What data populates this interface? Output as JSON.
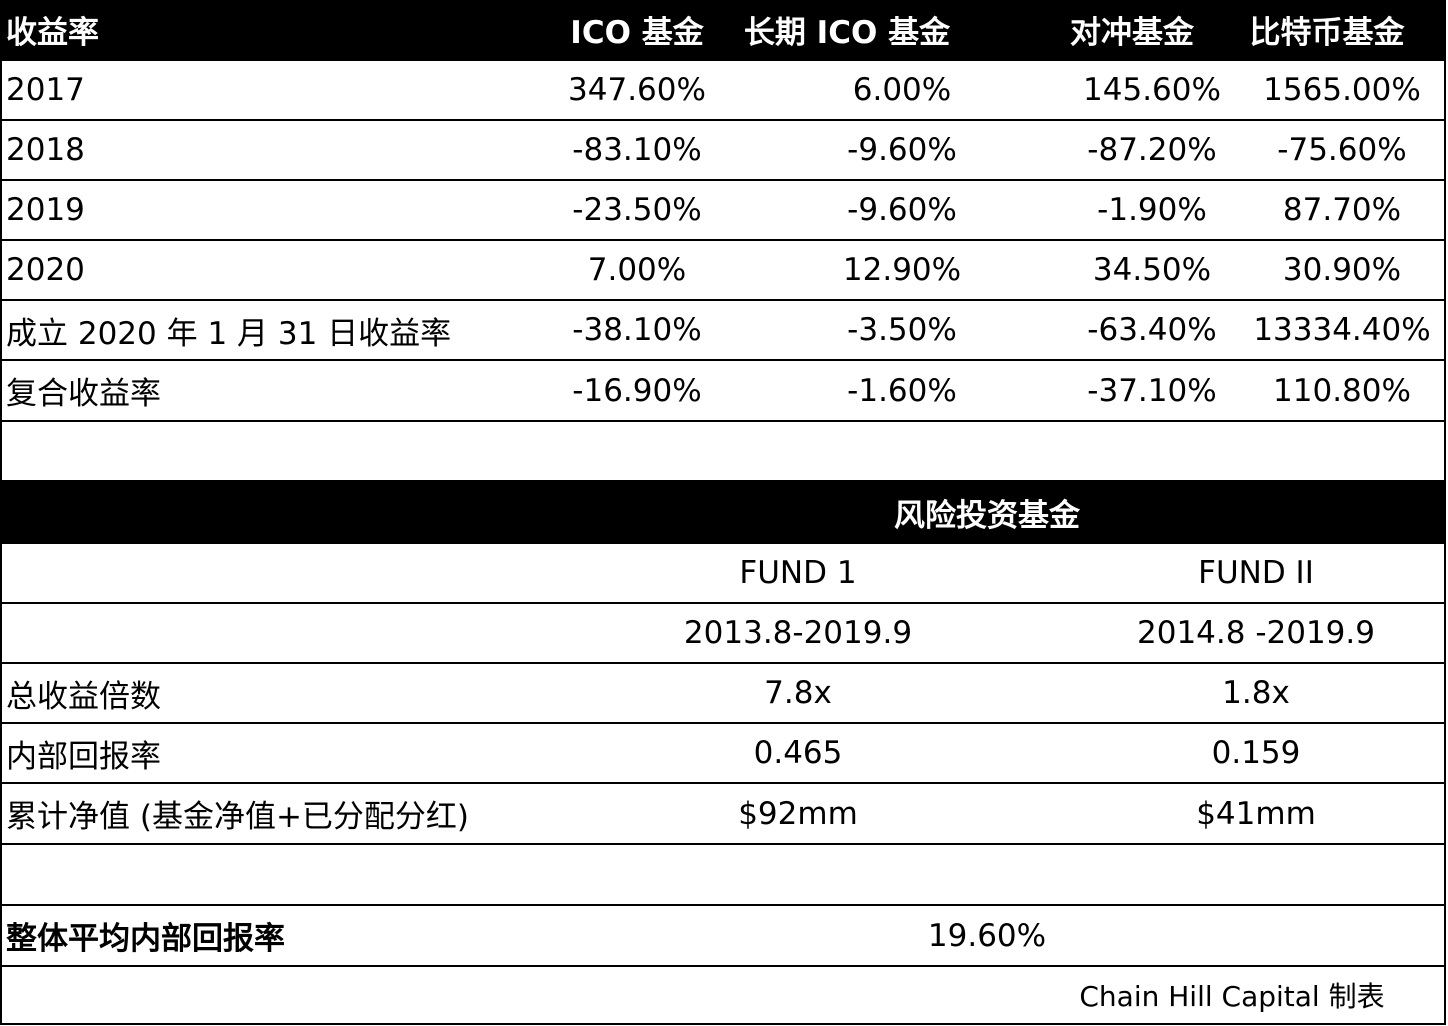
{
  "returns_table": {
    "header": {
      "label": "收益率",
      "columns": [
        "ICO 基金",
        "长期 ICO 基金",
        "对冲基金",
        "比特币基金"
      ]
    },
    "rows": [
      {
        "label": "2017",
        "values": [
          "347.60%",
          "6.00%",
          "145.60%",
          "1565.00%"
        ]
      },
      {
        "label": "2018",
        "values": [
          "-83.10%",
          "-9.60%",
          "-87.20%",
          "-75.60%"
        ]
      },
      {
        "label": "2019",
        "values": [
          "-23.50%",
          "-9.60%",
          "-1.90%",
          "87.70%"
        ]
      },
      {
        "label": "2020",
        "values": [
          "7.00%",
          "12.90%",
          "34.50%",
          "30.90%"
        ]
      },
      {
        "label": "成立 2020 年 1 月 31 日收益率",
        "values": [
          "-38.10%",
          "-3.50%",
          "-63.40%",
          "13334.40%"
        ]
      },
      {
        "label": "复合收益率",
        "values": [
          "-16.90%",
          "-1.60%",
          "-37.10%",
          "110.80%"
        ]
      }
    ]
  },
  "vc_table": {
    "header": "风险投资基金",
    "funds": [
      "FUND 1",
      "FUND II"
    ],
    "periods": [
      "2013.8-2019.9",
      "2014.8 -2019.9"
    ],
    "rows": [
      {
        "label": "总收益倍数",
        "values": [
          "7.8x",
          "1.8x"
        ]
      },
      {
        "label": "内部回报率",
        "values": [
          "0.465",
          "0.159"
        ]
      },
      {
        "label": "累计净值 (基金净值+已分配分红)",
        "values": [
          "$92mm",
          "$41mm"
        ]
      }
    ]
  },
  "overall": {
    "label": "整体平均内部回报率",
    "value": "19.60%"
  },
  "credit": "Chain Hill Capital 制表",
  "colors": {
    "header_bg": "#000000",
    "header_text": "#ffffff",
    "border": "#000000"
  }
}
